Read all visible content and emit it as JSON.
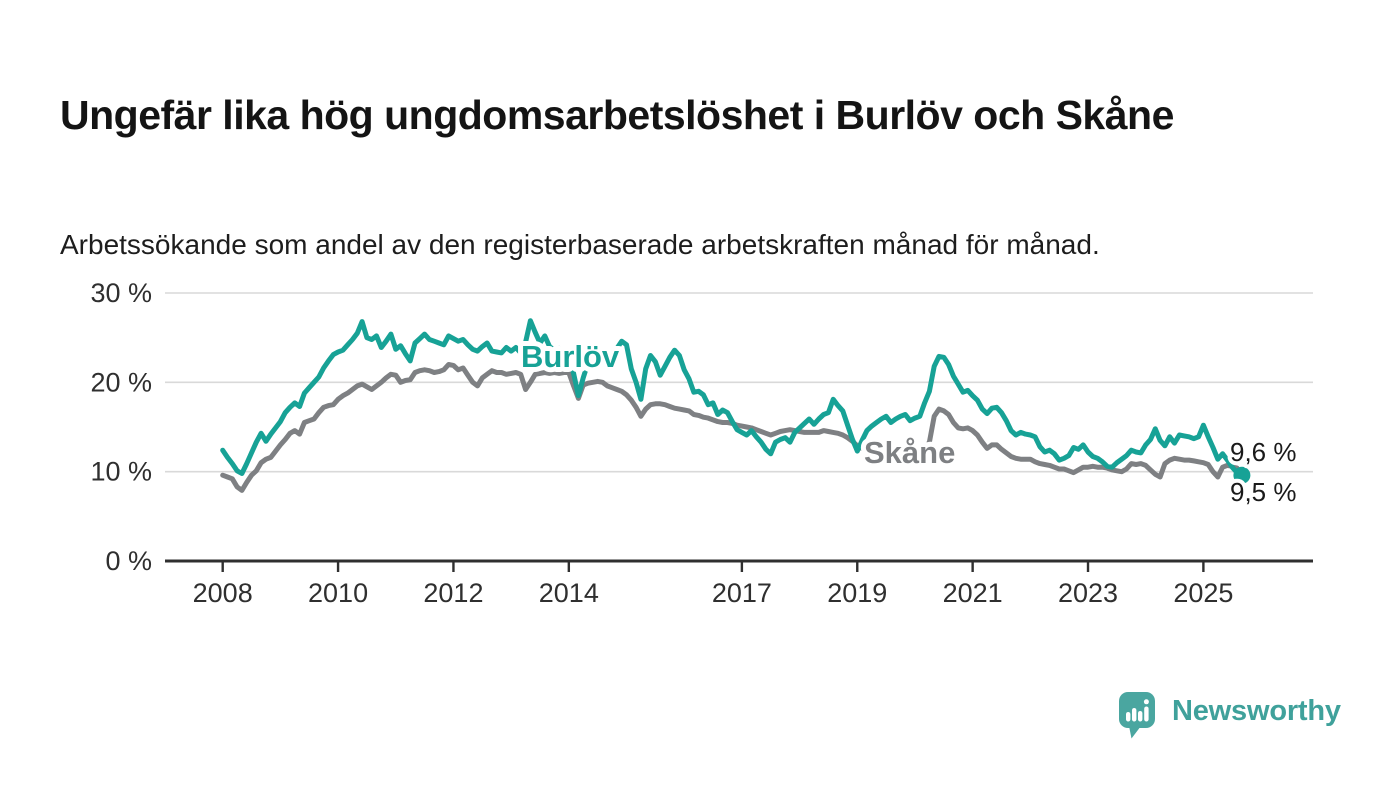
{
  "header": {
    "title": "Ungefär lika hög ungdomsarbetslöshet i Burlöv och Skåne",
    "subtitle": "Arbetssökande som andel av den registerbaserade arbetskraften månad för månad."
  },
  "chart_data": {
    "type": "line",
    "title": "Ungefär lika hög ungdomsarbetslöshet i Burlöv och Skåne",
    "subtitle": "Arbetssökande som andel av den registerbaserade arbetskraften månad för månad.",
    "x_unit": "month",
    "x_start": "2008-01",
    "x_end": "2025-09",
    "ylim": [
      0,
      30
    ],
    "grid": true,
    "legend_position": "inline-labels",
    "colors": {
      "grid": "#d9d9d9",
      "axis": "#2f2f2f",
      "tick_text": "#2f2f2f",
      "value_text": "#1a1a1a"
    },
    "y_ticks": [
      {
        "value": 0,
        "label": "0 %"
      },
      {
        "value": 10,
        "label": "10 %"
      },
      {
        "value": 20,
        "label": "20 %"
      },
      {
        "value": 30,
        "label": "30 %"
      }
    ],
    "x_ticks": [
      {
        "value": 2008,
        "label": "2008"
      },
      {
        "value": 2010,
        "label": "2010"
      },
      {
        "value": 2012,
        "label": "2012"
      },
      {
        "value": 2014,
        "label": "2014"
      },
      {
        "value": 2017,
        "label": "2017"
      },
      {
        "value": 2019,
        "label": "2019"
      },
      {
        "value": 2021,
        "label": "2021"
      },
      {
        "value": 2023,
        "label": "2023"
      },
      {
        "value": 2025,
        "label": "2025"
      }
    ],
    "series": [
      {
        "name": "Burlöv",
        "color": "#17a296",
        "end_label": "9,6 %",
        "last_value": 9.6,
        "end_dot": true,
        "values": [
          12.4,
          11.6,
          10.9,
          10.1,
          9.8,
          10.9,
          12.1,
          13.3,
          14.3,
          13.4,
          14.2,
          14.9,
          15.6,
          16.6,
          17.2,
          17.7,
          17.3,
          18.8,
          19.4,
          20.0,
          20.6,
          21.6,
          22.4,
          23.1,
          23.4,
          23.6,
          24.2,
          24.8,
          25.5,
          26.8,
          25.0,
          24.8,
          25.2,
          23.9,
          24.6,
          25.4,
          23.7,
          24.1,
          23.2,
          22.4,
          24.4,
          24.9,
          25.4,
          24.8,
          24.6,
          24.4,
          24.2,
          25.2,
          24.9,
          24.6,
          24.8,
          24.2,
          23.7,
          23.5,
          24.0,
          24.4,
          23.5,
          23.4,
          23.3,
          23.9,
          23.5,
          23.9,
          23.3,
          24.5,
          26.9,
          25.6,
          24.4,
          25.2,
          24.0,
          23.6,
          23.8,
          23.5,
          22.8,
          21.0,
          18.5,
          20.5,
          22.2,
          22.5,
          23.2,
          22.9,
          22.7,
          23.0,
          23.8,
          24.6,
          24.2,
          21.5,
          20.0,
          18.1,
          21.5,
          23.0,
          22.3,
          20.8,
          21.8,
          22.8,
          23.6,
          23.0,
          21.4,
          20.4,
          18.9,
          19.0,
          18.6,
          17.5,
          17.7,
          16.4,
          16.9,
          16.6,
          15.6,
          14.7,
          14.4,
          14.1,
          14.6,
          13.9,
          13.3,
          12.5,
          12.0,
          13.3,
          13.6,
          13.8,
          13.3,
          14.4,
          14.9,
          15.4,
          15.9,
          15.3,
          15.9,
          16.4,
          16.6,
          18.1,
          17.4,
          16.8,
          15.2,
          13.6,
          12.3,
          13.5,
          14.6,
          15.1,
          15.5,
          15.9,
          16.2,
          15.5,
          15.9,
          16.2,
          16.4,
          15.7,
          16.0,
          16.2,
          17.7,
          19.0,
          21.8,
          22.9,
          22.8,
          22.0,
          20.7,
          19.8,
          18.9,
          19.1,
          18.5,
          18.0,
          17.0,
          16.5,
          17.1,
          17.2,
          16.6,
          15.7,
          14.6,
          14.1,
          14.4,
          14.2,
          14.1,
          13.9,
          12.8,
          12.2,
          12.4,
          12.0,
          11.3,
          11.5,
          11.8,
          12.7,
          12.5,
          13.0,
          12.2,
          11.7,
          11.5,
          11.1,
          10.6,
          10.5,
          11.0,
          11.4,
          11.8,
          12.4,
          12.2,
          12.1,
          13.0,
          13.6,
          14.8,
          13.5,
          12.9,
          13.9,
          13.2,
          14.1,
          14.0,
          13.9,
          13.7,
          13.9,
          15.2,
          13.9,
          12.7,
          11.4,
          12.0,
          11.3,
          10.5,
          9.9,
          9.6
        ]
      },
      {
        "name": "Skåne",
        "color": "#7e8083",
        "end_label": "9,5 %",
        "last_value": 9.5,
        "end_dot": false,
        "values": [
          9.6,
          9.4,
          9.2,
          8.3,
          7.9,
          8.8,
          9.6,
          10.1,
          11.0,
          11.4,
          11.6,
          12.3,
          13.0,
          13.6,
          14.3,
          14.6,
          14.2,
          15.5,
          15.7,
          15.9,
          16.6,
          17.2,
          17.4,
          17.5,
          18.1,
          18.5,
          18.8,
          19.2,
          19.6,
          19.8,
          19.5,
          19.2,
          19.6,
          20.0,
          20.5,
          20.9,
          20.8,
          20.0,
          20.2,
          20.3,
          21.1,
          21.3,
          21.4,
          21.3,
          21.1,
          21.2,
          21.4,
          22.0,
          21.9,
          21.4,
          21.6,
          20.8,
          20.0,
          19.6,
          20.5,
          20.9,
          21.3,
          21.1,
          21.1,
          20.9,
          21.0,
          21.1,
          20.9,
          19.2,
          20.0,
          20.9,
          21.0,
          21.1,
          21.0,
          21.1,
          21.0,
          21.1,
          21.1,
          19.6,
          18.2,
          19.7,
          19.9,
          20.0,
          20.1,
          20.0,
          19.6,
          19.4,
          19.2,
          19.0,
          18.6,
          18.0,
          17.2,
          16.2,
          17.0,
          17.5,
          17.6,
          17.6,
          17.5,
          17.3,
          17.1,
          17.0,
          16.9,
          16.8,
          16.4,
          16.3,
          16.1,
          16.0,
          15.8,
          15.6,
          15.5,
          15.5,
          15.4,
          15.2,
          15.1,
          15.0,
          14.9,
          14.7,
          14.5,
          14.3,
          14.1,
          14.3,
          14.5,
          14.6,
          14.7,
          14.6,
          14.5,
          14.4,
          14.4,
          14.4,
          14.4,
          14.6,
          14.5,
          14.4,
          14.3,
          14.1,
          13.8,
          13.4,
          12.9,
          12.6,
          12.4,
          12.3,
          12.3,
          11.9,
          11.7,
          12.0,
          12.2,
          12.2,
          12.1,
          12.1,
          12.1,
          12.2,
          12.6,
          13.3,
          16.2,
          17.0,
          16.8,
          16.4,
          15.5,
          14.9,
          14.8,
          14.9,
          14.6,
          14.1,
          13.3,
          12.6,
          13.0,
          13.0,
          12.5,
          12.1,
          11.7,
          11.5,
          11.4,
          11.4,
          11.4,
          11.1,
          10.9,
          10.8,
          10.7,
          10.5,
          10.3,
          10.3,
          10.1,
          9.9,
          10.2,
          10.5,
          10.5,
          10.6,
          10.5,
          10.5,
          10.4,
          10.2,
          10.1,
          10.0,
          10.3,
          10.9,
          10.8,
          10.9,
          10.7,
          10.2,
          9.7,
          9.4,
          10.9,
          11.3,
          11.5,
          11.4,
          11.3,
          11.3,
          11.2,
          11.1,
          11.0,
          10.8,
          10.0,
          9.4,
          10.5,
          10.7,
          10.6,
          10.4,
          9.5
        ]
      }
    ]
  },
  "footer": {
    "brand": "Newsworthy",
    "brand_color": "#3fa19b",
    "logo_color": "#4aa6a0"
  }
}
